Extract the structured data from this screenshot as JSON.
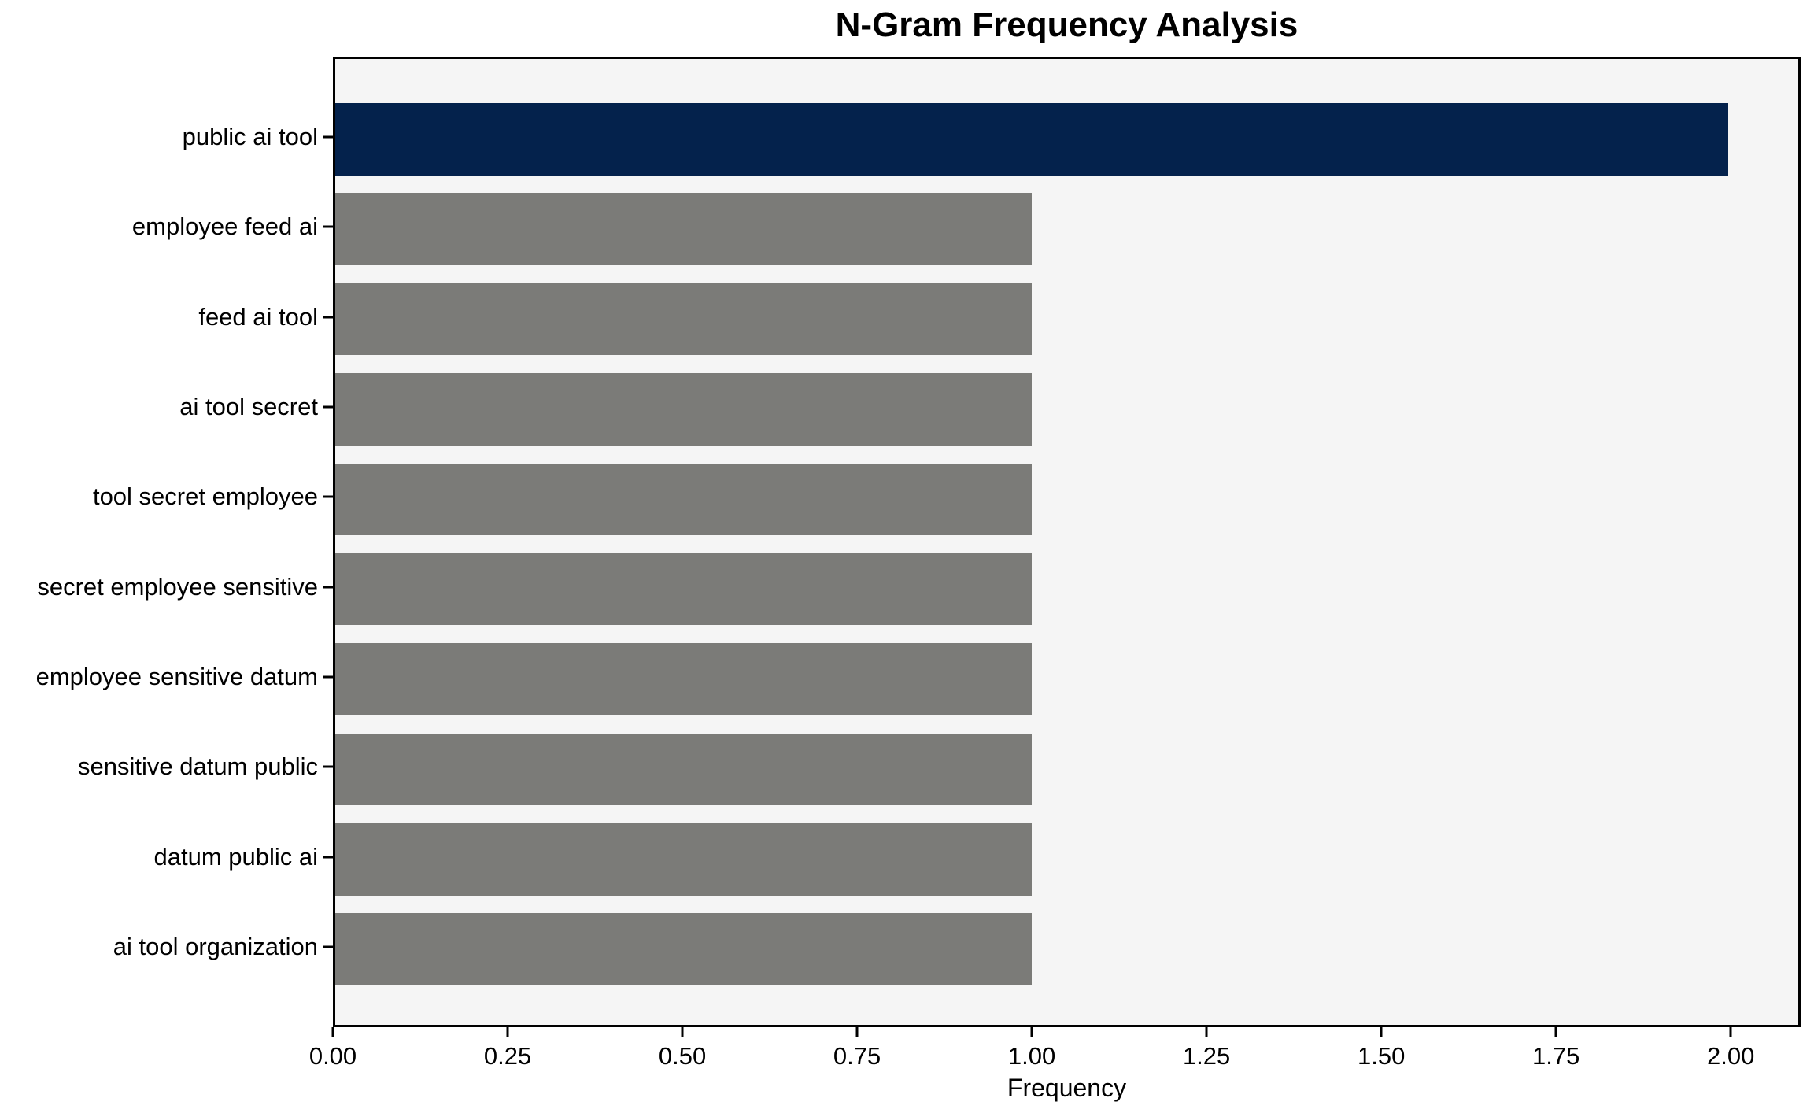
{
  "chart_data": {
    "type": "bar",
    "orientation": "horizontal",
    "title": "N-Gram Frequency Analysis",
    "xlabel": "Frequency",
    "ylabel": "",
    "categories": [
      "public ai tool",
      "employee feed ai",
      "feed ai tool",
      "ai tool secret",
      "tool secret employee",
      "secret employee sensitive",
      "employee sensitive datum",
      "sensitive datum public",
      "datum public ai",
      "ai tool organization"
    ],
    "values": [
      2,
      1,
      1,
      1,
      1,
      1,
      1,
      1,
      1,
      1
    ],
    "bar_colors": [
      "#04224c",
      "#7b7b78",
      "#7b7b78",
      "#7b7b78",
      "#7b7b78",
      "#7b7b78",
      "#7b7b78",
      "#7b7b78",
      "#7b7b78",
      "#7b7b78"
    ],
    "highlight_color": "#04224c",
    "default_color": "#7b7b78",
    "xlim": [
      0,
      2.1
    ],
    "x_ticks": [
      {
        "value": 0.0,
        "label": "0.00"
      },
      {
        "value": 0.25,
        "label": "0.25"
      },
      {
        "value": 0.5,
        "label": "0.50"
      },
      {
        "value": 0.75,
        "label": "0.75"
      },
      {
        "value": 1.0,
        "label": "1.00"
      },
      {
        "value": 1.25,
        "label": "1.25"
      },
      {
        "value": 1.5,
        "label": "1.50"
      },
      {
        "value": 1.75,
        "label": "1.75"
      },
      {
        "value": 2.0,
        "label": "2.00"
      }
    ],
    "grid": false,
    "legend": null,
    "plot_background": "#f5f5f5",
    "figure_background": "#ffffff",
    "frame_color": "#000000"
  }
}
